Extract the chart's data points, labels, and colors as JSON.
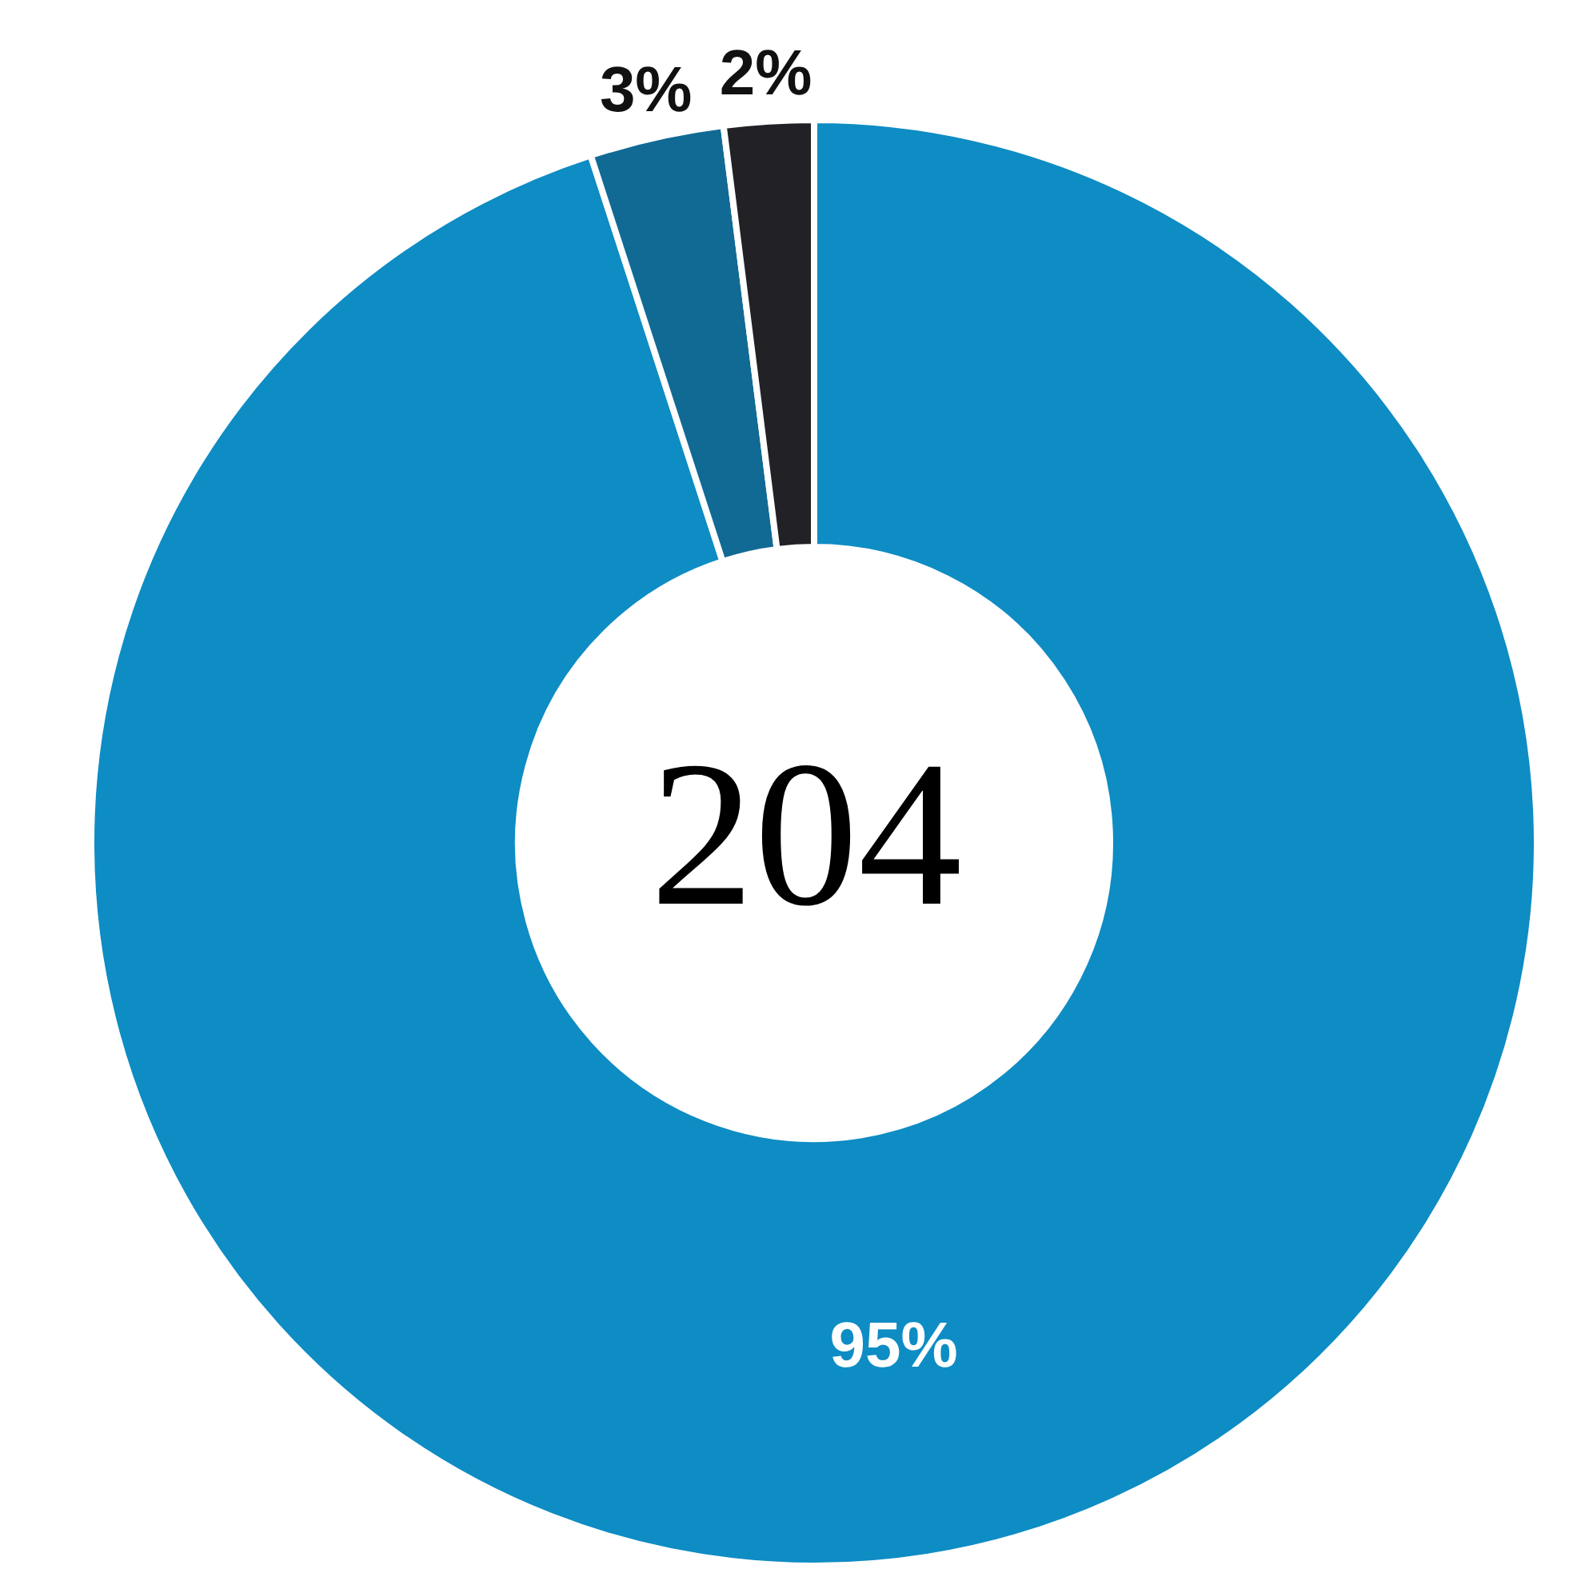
{
  "chart_data": {
    "type": "donut",
    "categories": [
      null,
      null,
      null
    ],
    "values": [
      95,
      3,
      2
    ],
    "colors": [
      "#0e8cc4",
      "#116a94",
      "#222226"
    ],
    "value_labels": [
      "95%",
      "3%",
      "2%"
    ],
    "annotations": [
      "204"
    ]
  }
}
